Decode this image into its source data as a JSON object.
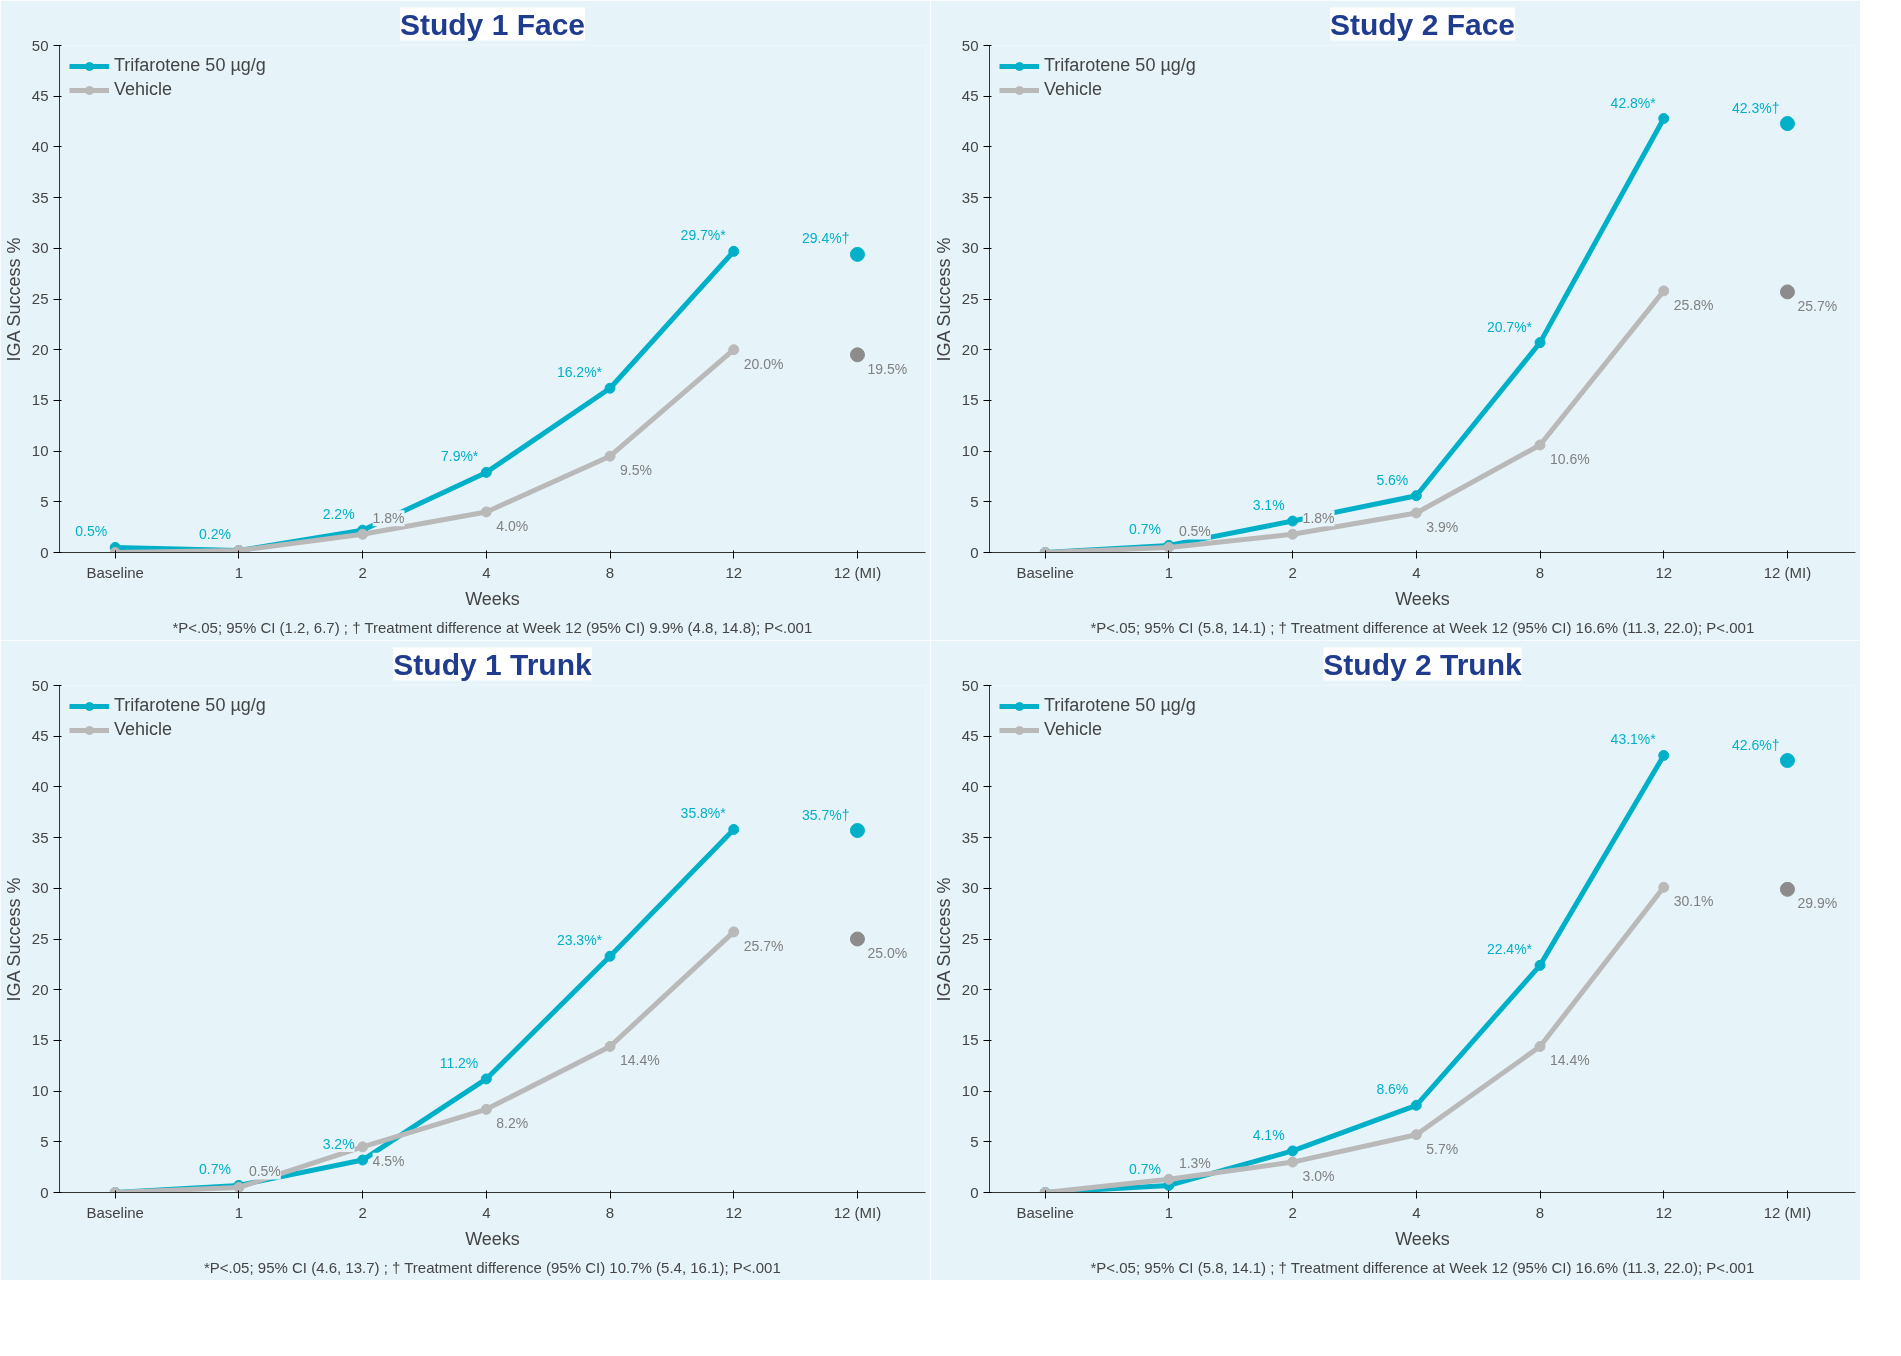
{
  "chart_data": [
    {
      "type": "line",
      "title": "Study 1 Face",
      "xlabel": "Weeks",
      "ylabel": "IGA Success %",
      "categories": [
        "Baseline",
        "1",
        "2",
        "4",
        "8",
        "12",
        "12 (MI)"
      ],
      "ylim": [
        0,
        50
      ],
      "yticks": [
        0,
        5,
        10,
        15,
        20,
        25,
        30,
        35,
        40,
        45,
        50
      ],
      "legend": "top left",
      "marker": "circle",
      "grid": false,
      "series": [
        {
          "name": "Trifarotene 50 µg/g",
          "color": "#00b0c8",
          "values": [
            0.5,
            0.2,
            2.2,
            7.9,
            16.2,
            29.7,
            null
          ],
          "value_labels": [
            "0.5%",
            "0.2%",
            "2.2%",
            "7.9%*",
            "16.2%*",
            "29.7%*",
            null
          ]
        },
        {
          "name": "Vehicle",
          "color": "#b9b9b9",
          "values": [
            0,
            0.2,
            1.8,
            4.0,
            9.5,
            20.0,
            null
          ],
          "value_labels": [
            null,
            null,
            "1.8%",
            "4.0%",
            "9.5%",
            "20.0%",
            null
          ]
        },
        {
          "type": "scatter",
          "color": "#00b0c8",
          "values": [
            null,
            null,
            null,
            null,
            null,
            null,
            29.4
          ],
          "value_labels": [
            null,
            null,
            null,
            null,
            null,
            null,
            "29.4%†"
          ]
        },
        {
          "type": "scatter",
          "color": "#8c8c8c",
          "values": [
            null,
            null,
            null,
            null,
            null,
            null,
            19.5
          ],
          "value_labels": [
            null,
            null,
            null,
            null,
            null,
            null,
            "19.5%"
          ]
        }
      ],
      "annotations": [
        "*P<.05; 95% CI (1.2, 6.7) ; † Treatment difference at Week 12 (95% CI) 9.9% (4.8, 14.8); P<.001"
      ]
    },
    {
      "type": "line",
      "title": "Study 2 Face",
      "xlabel": "Weeks",
      "ylabel": "IGA Success %",
      "categories": [
        "Baseline",
        "1",
        "2",
        "4",
        "8",
        "12",
        "12 (MI)"
      ],
      "ylim": [
        0,
        50
      ],
      "yticks": [
        0,
        5,
        10,
        15,
        20,
        25,
        30,
        35,
        40,
        45,
        50
      ],
      "legend": "top left",
      "marker": "circle",
      "grid": false,
      "series": [
        {
          "name": "Trifarotene 50 µg/g",
          "color": "#00b0c8",
          "values": [
            0,
            0.7,
            3.1,
            5.6,
            20.7,
            42.8,
            null
          ],
          "value_labels": [
            null,
            "0.7%",
            "3.1%",
            "5.6%",
            "20.7%*",
            "42.8%*",
            null
          ]
        },
        {
          "name": "Vehicle",
          "color": "#b9b9b9",
          "values": [
            0,
            0.5,
            1.8,
            3.9,
            10.6,
            25.8,
            null
          ],
          "value_labels": [
            null,
            "0.5%",
            "1.8%",
            "3.9%",
            "10.6%",
            "25.8%",
            null
          ]
        },
        {
          "type": "scatter",
          "color": "#00b0c8",
          "values": [
            null,
            null,
            null,
            null,
            null,
            null,
            42.3
          ],
          "value_labels": [
            null,
            null,
            null,
            null,
            null,
            null,
            "42.3%†"
          ]
        },
        {
          "type": "scatter",
          "color": "#8c8c8c",
          "values": [
            null,
            null,
            null,
            null,
            null,
            null,
            25.7
          ],
          "value_labels": [
            null,
            null,
            null,
            null,
            null,
            null,
            "25.7%"
          ]
        }
      ],
      "annotations": [
        "*P<.05; 95% CI (5.8, 14.1) ; † Treatment difference at Week 12 (95% CI) 16.6% (11.3, 22.0); P<.001"
      ]
    },
    {
      "type": "line",
      "title": "Study 1 Trunk",
      "xlabel": "Weeks",
      "ylabel": "IGA Success %",
      "categories": [
        "Baseline",
        "1",
        "2",
        "4",
        "8",
        "12",
        "12 (MI)"
      ],
      "ylim": [
        0,
        50
      ],
      "yticks": [
        0,
        5,
        10,
        15,
        20,
        25,
        30,
        35,
        40,
        45,
        50
      ],
      "legend": "top left",
      "marker": "circle",
      "grid": false,
      "series": [
        {
          "name": "Trifarotene 50 µg/g",
          "color": "#00b0c8",
          "values": [
            0,
            0.7,
            3.2,
            11.2,
            23.3,
            35.8,
            null
          ],
          "value_labels": [
            null,
            "0.7%",
            "3.2%",
            "11.2%",
            "23.3%*",
            "35.8%*",
            null
          ]
        },
        {
          "name": "Vehicle",
          "color": "#b9b9b9",
          "values": [
            0,
            0.5,
            4.5,
            8.2,
            14.4,
            25.7,
            null
          ],
          "value_labels": [
            null,
            "0.5%",
            "4.5%",
            "8.2%",
            "14.4%",
            "25.7%",
            null
          ]
        },
        {
          "type": "scatter",
          "color": "#00b0c8",
          "values": [
            null,
            null,
            null,
            null,
            null,
            null,
            35.7
          ],
          "value_labels": [
            null,
            null,
            null,
            null,
            null,
            null,
            "35.7%†"
          ]
        },
        {
          "type": "scatter",
          "color": "#8c8c8c",
          "values": [
            null,
            null,
            null,
            null,
            null,
            null,
            25.0
          ],
          "value_labels": [
            null,
            null,
            null,
            null,
            null,
            null,
            "25.0%"
          ]
        }
      ],
      "annotations": [
        "*P<.05; 95% CI (4.6, 13.7) ; † Treatment difference (95% CI) 10.7% (5.4, 16.1); P<.001"
      ]
    },
    {
      "type": "line",
      "title": "Study 2 Trunk",
      "xlabel": "Weeks",
      "ylabel": "IGA Success %",
      "categories": [
        "Baseline",
        "1",
        "2",
        "4",
        "8",
        "12",
        "12 (MI)"
      ],
      "ylim": [
        0,
        50
      ],
      "yticks": [
        0,
        5,
        10,
        15,
        20,
        25,
        30,
        35,
        40,
        45,
        50
      ],
      "legend": "top left",
      "marker": "circle",
      "grid": false,
      "series": [
        {
          "name": "Trifarotene 50 µg/g",
          "color": "#00b0c8",
          "values": [
            0,
            0.7,
            4.1,
            8.6,
            22.4,
            43.1,
            null
          ],
          "value_labels": [
            null,
            "0.7%",
            "4.1%",
            "8.6%",
            "22.4%*",
            "43.1%*",
            null
          ]
        },
        {
          "name": "Vehicle",
          "color": "#b9b9b9",
          "values": [
            0,
            1.3,
            3.0,
            5.7,
            14.4,
            30.1,
            null
          ],
          "value_labels": [
            null,
            "1.3%",
            "3.0%",
            "5.7%",
            "14.4%",
            "30.1%",
            null
          ]
        },
        {
          "type": "scatter",
          "color": "#00b0c8",
          "values": [
            null,
            null,
            null,
            null,
            null,
            null,
            42.6
          ],
          "value_labels": [
            null,
            null,
            null,
            null,
            null,
            null,
            "42.6%†"
          ]
        },
        {
          "type": "scatter",
          "color": "#8c8c8c",
          "values": [
            null,
            null,
            null,
            null,
            null,
            null,
            29.9
          ],
          "value_labels": [
            null,
            null,
            null,
            null,
            null,
            null,
            "29.9%"
          ]
        }
      ],
      "annotations": [
        "*P<.05; 95% CI (5.8, 14.1) ; † Treatment difference at Week 12 (95% CI) 16.6% (11.3, 22.0); P<.001"
      ]
    }
  ]
}
